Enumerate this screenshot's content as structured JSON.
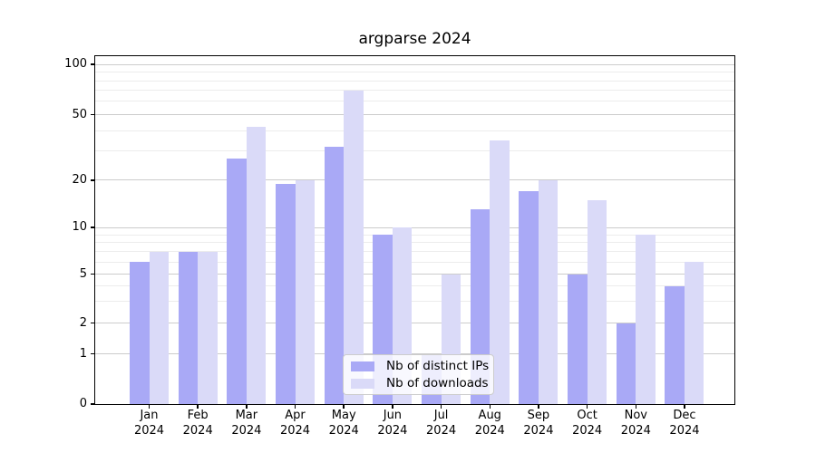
{
  "figure": {
    "title": "argparse 2024"
  },
  "chart_data": {
    "type": "bar",
    "title": "argparse 2024",
    "categories": [
      "Jan",
      "Feb",
      "Mar",
      "Apr",
      "May",
      "Jun",
      "Jul",
      "Aug",
      "Sep",
      "Oct",
      "Nov",
      "Dec"
    ],
    "year_label": "2024",
    "series": [
      {
        "name": "Nb of distinct IPs",
        "color": "#a9a9f6",
        "values": [
          6,
          7,
          27,
          19,
          32,
          9,
          1,
          13,
          17,
          5,
          2,
          4
        ]
      },
      {
        "name": "Nb of downloads",
        "color": "#dadaf8",
        "values": [
          7,
          7,
          42,
          20,
          70,
          10,
          5,
          35,
          20,
          15,
          9,
          6
        ]
      }
    ],
    "yscale": "symlog",
    "ylim": [
      0,
      110
    ],
    "yticks": [
      0,
      1,
      2,
      5,
      10,
      20,
      50,
      100
    ],
    "yticks_minor": [
      3,
      4,
      6,
      7,
      8,
      9,
      30,
      40,
      60,
      70,
      80,
      90
    ],
    "grid": true,
    "legend_position": "lower center",
    "colors": {
      "major_grid": "#cccccc",
      "minor_grid": "#ececec",
      "axis": "#000000",
      "background": "#ffffff"
    }
  }
}
